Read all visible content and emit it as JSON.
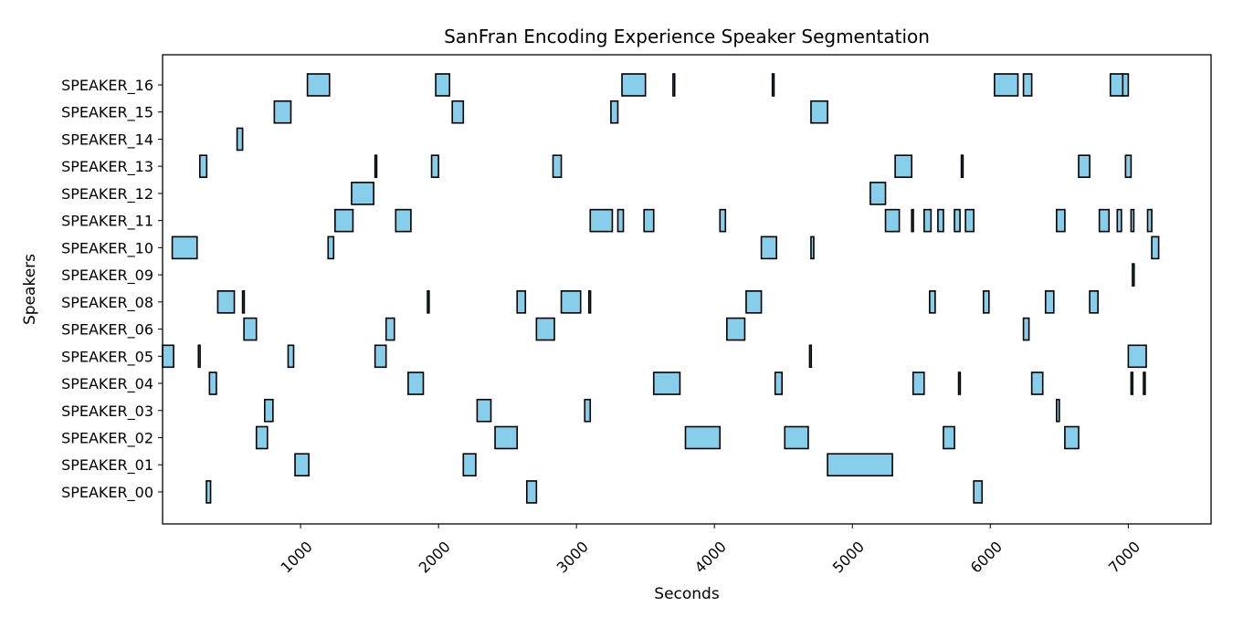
{
  "chart_data": {
    "type": "broken-barh",
    "title": "SanFran Encoding Experience Speaker Segmentation",
    "xlabel": "Seconds",
    "ylabel": "Speakers",
    "xlim": [
      0,
      7600
    ],
    "x_ticks": [
      1000,
      2000,
      3000,
      4000,
      5000,
      6000,
      7000
    ],
    "x_tick_labels": [
      "1000",
      "2000",
      "3000",
      "4000",
      "5000",
      "6000",
      "7000"
    ],
    "grid": false,
    "bar_fill_color": "#87ceeb",
    "bar_edge_color": "#000000",
    "speakers": [
      {
        "name": "SPEAKER_00",
        "segments": [
          [
            318,
            30
          ],
          [
            2640,
            70
          ],
          [
            5880,
            60
          ]
        ]
      },
      {
        "name": "SPEAKER_01",
        "segments": [
          [
            960,
            100
          ],
          [
            2180,
            90
          ],
          [
            4820,
            470
          ]
        ]
      },
      {
        "name": "SPEAKER_02",
        "segments": [
          [
            680,
            80
          ],
          [
            2410,
            160
          ],
          [
            3790,
            250
          ],
          [
            4510,
            170
          ],
          [
            5660,
            80
          ],
          [
            6540,
            100
          ]
        ]
      },
      {
        "name": "SPEAKER_03",
        "segments": [
          [
            740,
            60
          ],
          [
            2280,
            100
          ],
          [
            3060,
            40
          ],
          [
            6480,
            20
          ]
        ]
      },
      {
        "name": "SPEAKER_04",
        "segments": [
          [
            340,
            50
          ],
          [
            1780,
            110
          ],
          [
            3560,
            190
          ],
          [
            4440,
            50
          ],
          [
            5440,
            80
          ],
          [
            5770,
            12
          ],
          [
            6300,
            80
          ],
          [
            7020,
            12
          ],
          [
            7110,
            12
          ]
        ]
      },
      {
        "name": "SPEAKER_05",
        "segments": [
          [
            0,
            80
          ],
          [
            260,
            12
          ],
          [
            910,
            40
          ],
          [
            1540,
            80
          ],
          [
            4690,
            12
          ],
          [
            7000,
            130
          ]
        ]
      },
      {
        "name": "SPEAKER_06",
        "segments": [
          [
            590,
            90
          ],
          [
            1620,
            60
          ],
          [
            2710,
            130
          ],
          [
            4090,
            130
          ],
          [
            6240,
            40
          ]
        ]
      },
      {
        "name": "SPEAKER_08",
        "segments": [
          [
            400,
            120
          ],
          [
            580,
            12
          ],
          [
            1920,
            12
          ],
          [
            2570,
            60
          ],
          [
            2890,
            140
          ],
          [
            3090,
            12
          ],
          [
            4230,
            110
          ],
          [
            5560,
            40
          ],
          [
            5950,
            40
          ],
          [
            6400,
            60
          ],
          [
            6720,
            60
          ]
        ]
      },
      {
        "name": "SPEAKER_09",
        "segments": [
          [
            7030,
            12
          ]
        ]
      },
      {
        "name": "SPEAKER_10",
        "segments": [
          [
            70,
            180
          ],
          [
            1200,
            40
          ],
          [
            4340,
            110
          ],
          [
            4700,
            20
          ],
          [
            7170,
            50
          ]
        ]
      },
      {
        "name": "SPEAKER_11",
        "segments": [
          [
            1250,
            130
          ],
          [
            1690,
            110
          ],
          [
            3100,
            160
          ],
          [
            3300,
            40
          ],
          [
            3490,
            70
          ],
          [
            4040,
            40
          ],
          [
            5240,
            100
          ],
          [
            5430,
            12
          ],
          [
            5520,
            50
          ],
          [
            5620,
            40
          ],
          [
            5740,
            40
          ],
          [
            5820,
            60
          ],
          [
            6480,
            60
          ],
          [
            6790,
            70
          ],
          [
            6920,
            30
          ],
          [
            7020,
            20
          ],
          [
            7140,
            30
          ]
        ]
      },
      {
        "name": "SPEAKER_12",
        "segments": [
          [
            1370,
            160
          ],
          [
            5130,
            110
          ]
        ]
      },
      {
        "name": "SPEAKER_13",
        "segments": [
          [
            270,
            50
          ],
          [
            1540,
            12
          ],
          [
            1950,
            50
          ],
          [
            2830,
            60
          ],
          [
            5310,
            120
          ],
          [
            5790,
            12
          ],
          [
            6640,
            80
          ],
          [
            6980,
            40
          ]
        ]
      },
      {
        "name": "SPEAKER_14",
        "segments": [
          [
            540,
            40
          ]
        ]
      },
      {
        "name": "SPEAKER_15",
        "segments": [
          [
            810,
            120
          ],
          [
            2100,
            80
          ],
          [
            3250,
            50
          ],
          [
            4700,
            120
          ]
        ]
      },
      {
        "name": "SPEAKER_16",
        "segments": [
          [
            1050,
            160
          ],
          [
            1980,
            100
          ],
          [
            3330,
            170
          ],
          [
            3700,
            12
          ],
          [
            4420,
            12
          ],
          [
            6030,
            170
          ],
          [
            6240,
            60
          ],
          [
            6870,
            90
          ],
          [
            6960,
            40
          ]
        ]
      }
    ]
  }
}
